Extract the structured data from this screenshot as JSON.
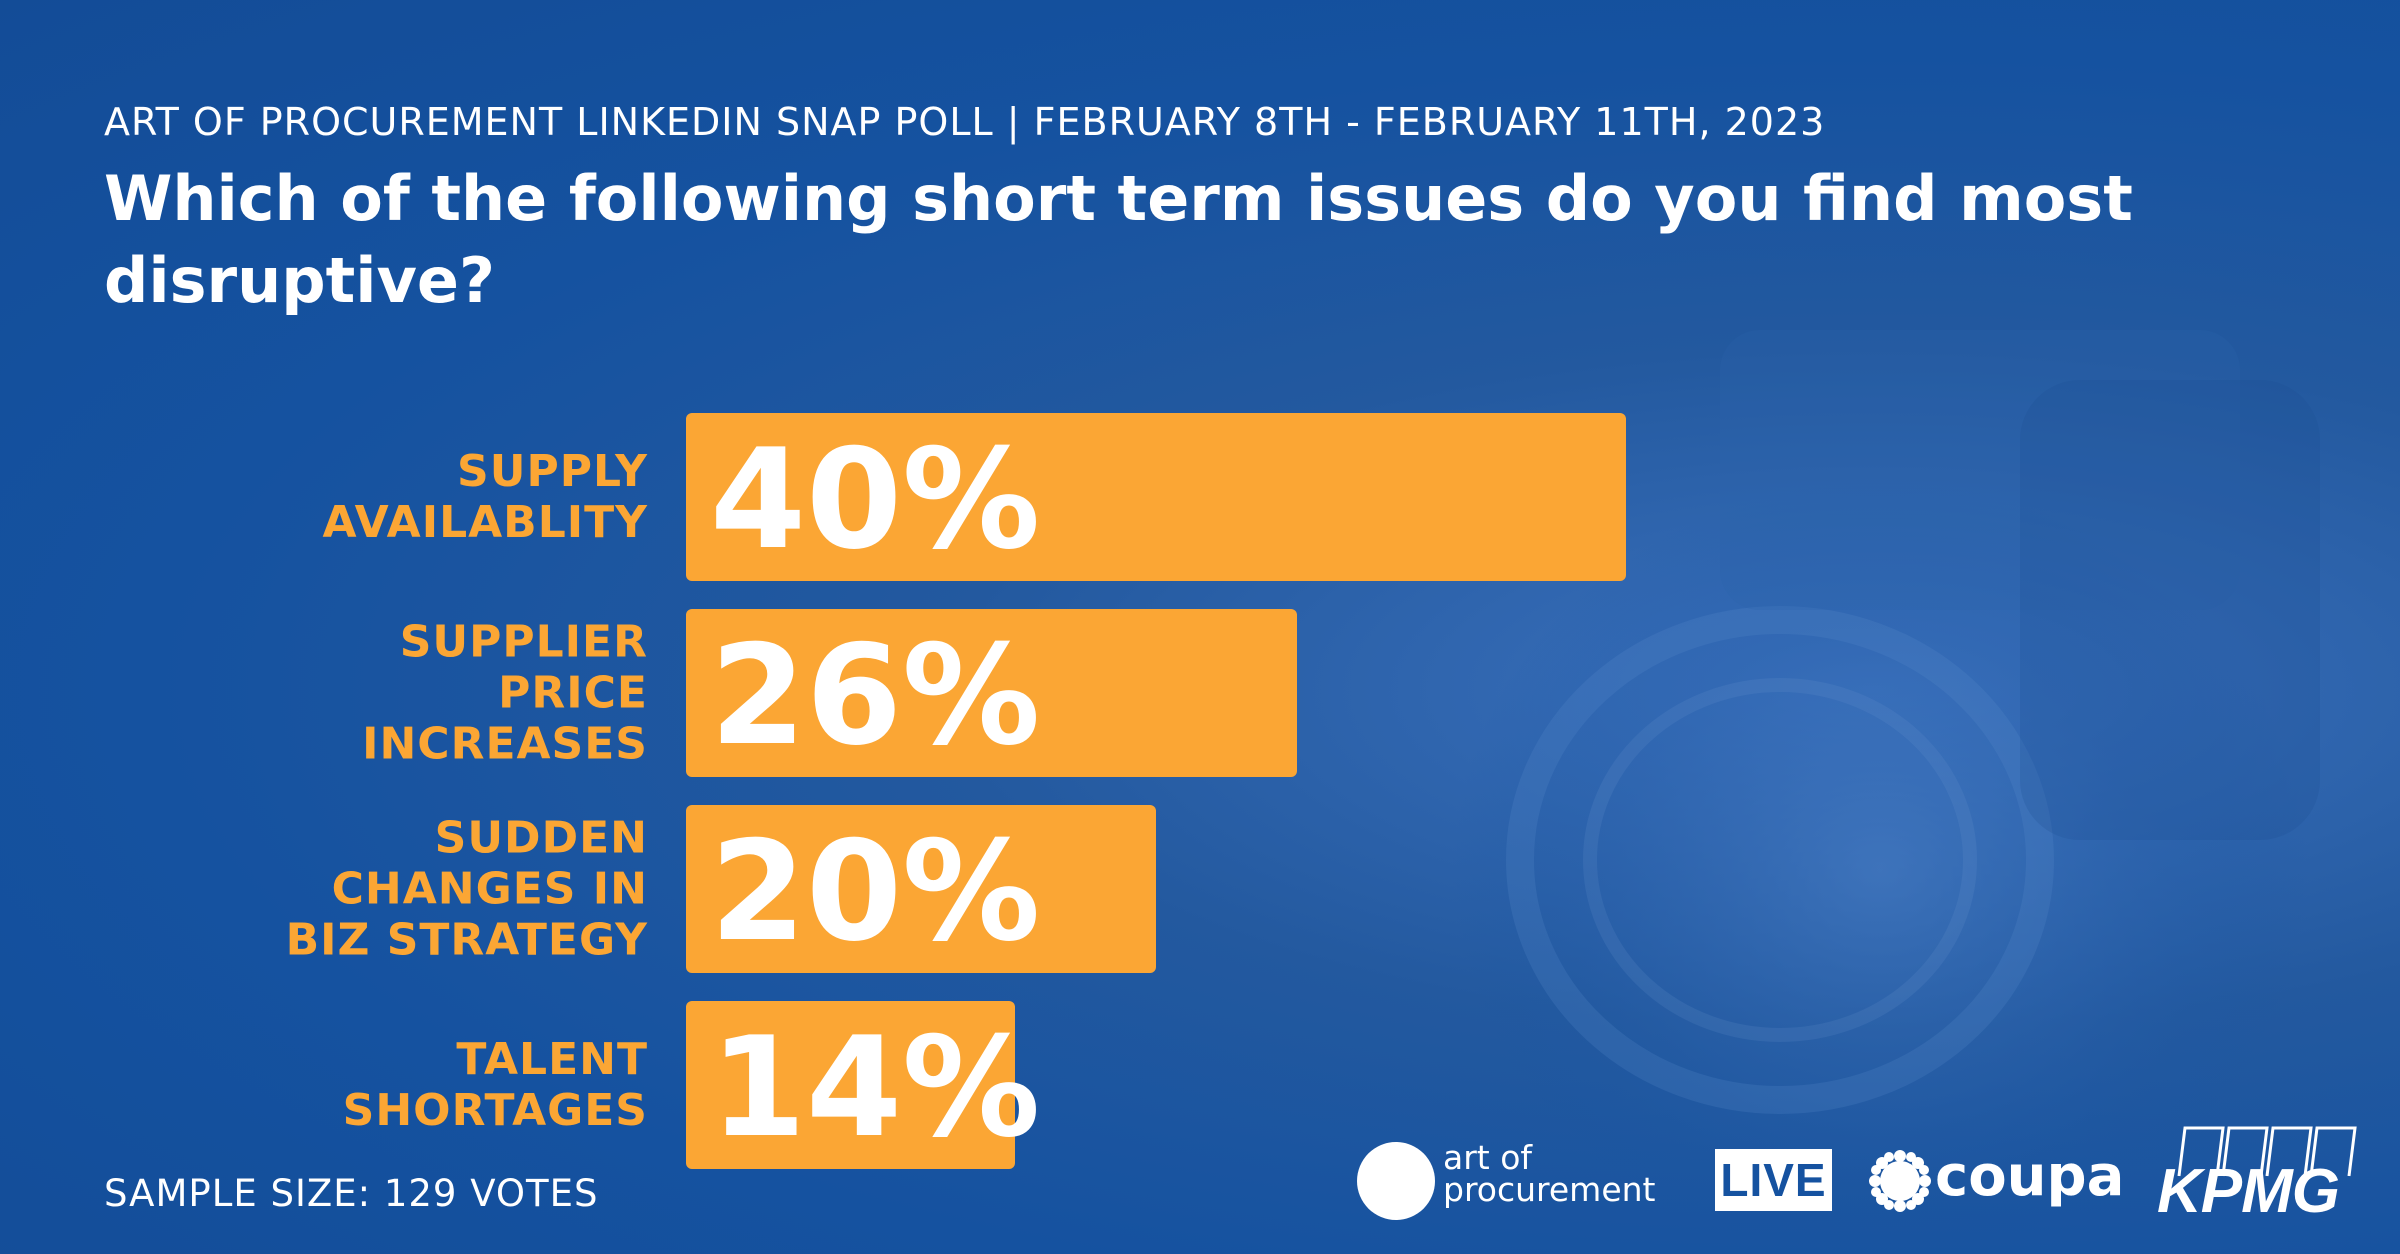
{
  "header": {
    "subtitle": "ART OF PROCUREMENT LINKEDIN SNAP POLL | FEBRUARY 8TH - FEBRUARY 11TH, 2023",
    "title": "Which of the following short term issues do you find most disruptive?"
  },
  "chart_data": {
    "type": "bar",
    "orientation": "horizontal",
    "categories": [
      [
        "SUPPLY",
        "AVAILABLITY"
      ],
      [
        "SUPPLIER",
        "PRICE",
        "INCREASES"
      ],
      [
        "SUDDEN",
        "CHANGES IN",
        "BIZ STRATEGY"
      ],
      [
        "TALENT",
        "SHORTAGES"
      ]
    ],
    "values": [
      40,
      26,
      20,
      14
    ],
    "data_labels": [
      "40%",
      "26%",
      "20%",
      "14%"
    ],
    "unit": "%",
    "xlim": [
      0,
      100
    ],
    "grid": false,
    "legend": "none"
  },
  "footer": {
    "sample_size": "SAMPLE SIZE: 129 VOTES"
  },
  "logos": {
    "aop_line1": "art of",
    "aop_line2": "procurement",
    "live": "LIVE",
    "coupa": "coupa",
    "kpmg": "KPMG"
  },
  "colors": {
    "background": "#1552a0",
    "bar": "#fba634",
    "category_label": "#fba634",
    "value_label": "#ffffff",
    "text": "#ffffff"
  }
}
